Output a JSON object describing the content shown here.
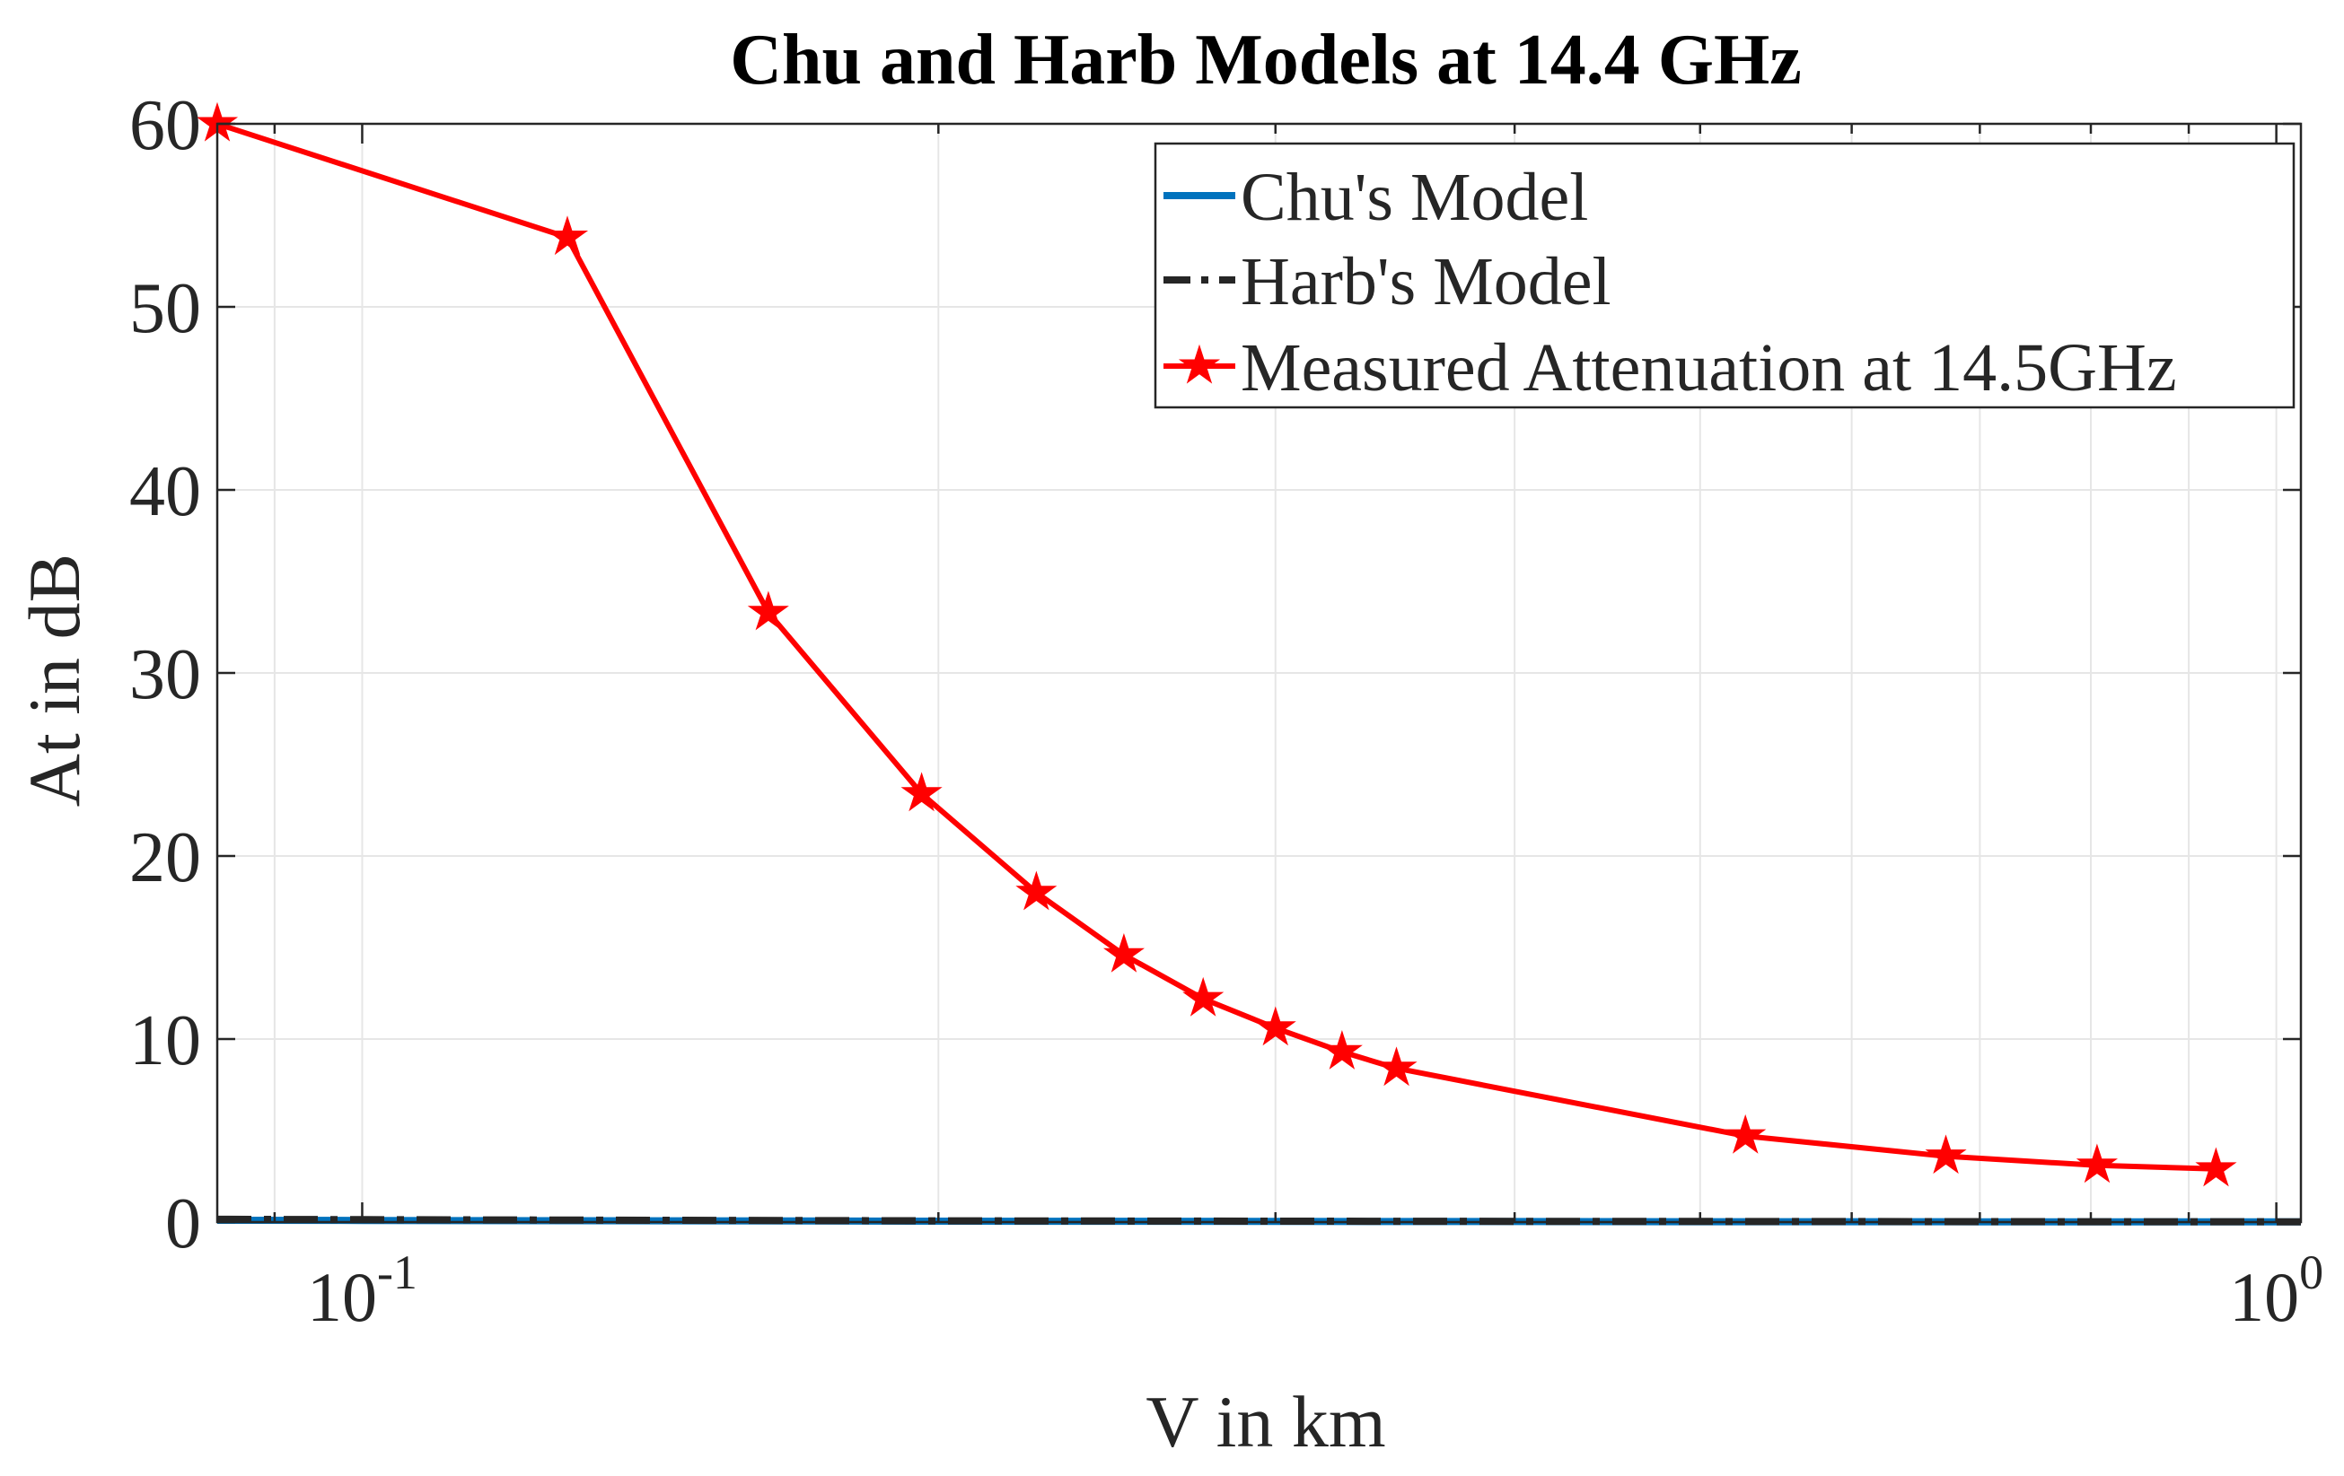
{
  "chart_data": {
    "type": "line",
    "title": "Chu and Harb Models at 14.4 GHz",
    "xlabel": "V in km",
    "ylabel": "At in dB",
    "xscale": "log",
    "xlim": [
      0.084,
      1.03
    ],
    "ylim": [
      0,
      60
    ],
    "grid": true,
    "legend_position": "top-right",
    "y_ticks": [
      "0",
      "10",
      "20",
      "30",
      "40",
      "50",
      "60"
    ],
    "x_tick_labels": [
      {
        "base": "10",
        "exponent": "-1",
        "value": 0.1
      },
      {
        "base": "10",
        "exponent": "0",
        "value": 1
      }
    ],
    "series": [
      {
        "name": "Chu's Model",
        "color": "#0072BD",
        "style": "solid",
        "x": [
          0.084,
          0.1,
          0.2,
          0.3,
          0.4,
          0.5,
          0.6,
          0.7,
          0.8,
          0.9,
          1.0,
          1.03
        ],
        "y": [
          0.1,
          0.09,
          0.05,
          0.035,
          0.027,
          0.022,
          0.019,
          0.016,
          0.014,
          0.013,
          0.012,
          0.011
        ]
      },
      {
        "name": "Harb's Model",
        "color": "#262626",
        "style": "dashdot",
        "x": [
          0.084,
          0.1,
          0.2,
          0.3,
          0.4,
          0.5,
          0.6,
          0.7,
          0.8,
          0.9,
          1.0,
          1.03
        ],
        "y": [
          0.15,
          0.13,
          0.07,
          0.05,
          0.04,
          0.033,
          0.028,
          0.024,
          0.021,
          0.019,
          0.017,
          0.016
        ]
      },
      {
        "name": "Measured Attenuation at 14.5GHz",
        "color": "#FF0000",
        "style": "solid",
        "marker": "star",
        "x": [
          0.084,
          0.128,
          0.163,
          0.196,
          0.225,
          0.25,
          0.275,
          0.3,
          0.325,
          0.347,
          0.528,
          0.672,
          0.806,
          0.93
        ],
        "y": [
          60,
          53.8,
          33.3,
          23.4,
          18,
          14.6,
          12.2,
          10.6,
          9.3,
          8.4,
          4.7,
          3.6,
          3.1,
          2.9
        ]
      }
    ]
  }
}
